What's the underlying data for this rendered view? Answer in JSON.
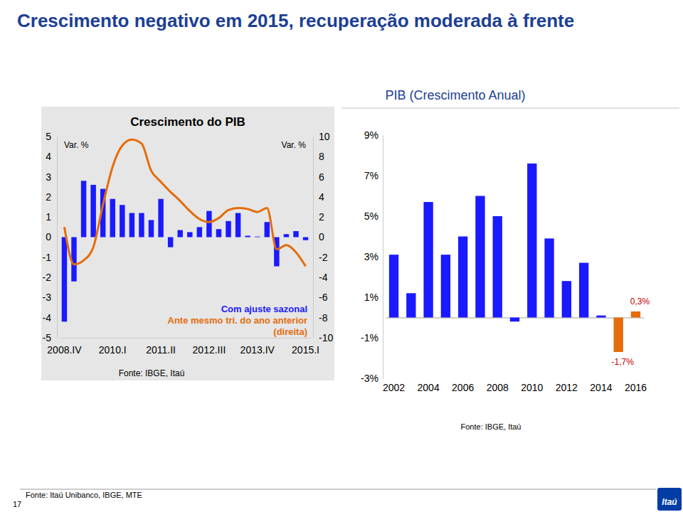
{
  "slide_title": "Crescimento negativo em 2015, recuperação moderada à frente",
  "chart_data": [
    {
      "type": "bar",
      "title": "Crescimento do PIB",
      "categories": [
        "2008.IV",
        null,
        null,
        null,
        null,
        "2010.I",
        null,
        null,
        null,
        null,
        "2011.II",
        null,
        null,
        null,
        null,
        "2012.III",
        null,
        null,
        null,
        null,
        "2013.IV",
        null,
        null,
        null,
        null,
        "2015.I"
      ],
      "series": [
        {
          "name": "Com ajuste sazonal",
          "type": "bar",
          "color": "#1a1aff",
          "values": [
            -4.2,
            -2.2,
            2.8,
            2.6,
            2.4,
            1.9,
            1.6,
            1.2,
            1.2,
            0.85,
            1.9,
            -0.5,
            0.35,
            0.25,
            0.5,
            1.3,
            0.4,
            0.8,
            1.2,
            0.07,
            0.03,
            0.75,
            -1.45,
            0.15,
            0.3,
            -0.15
          ]
        },
        {
          "name": "Ante mesmo tri. do ano anterior (direita)",
          "type": "line",
          "color": "#e46c0a",
          "axis": "y2",
          "values": [
            1.0,
            -2.7,
            -2.3,
            -1.0,
            3.2,
            7.0,
            9.1,
            9.7,
            9.3,
            6.6,
            5.5,
            4.5,
            3.6,
            2.6,
            1.8,
            1.5,
            1.9,
            2.7,
            2.9,
            2.8,
            2.5,
            2.9,
            -1.2,
            -0.8,
            -1.5,
            -2.9
          ]
        }
      ],
      "ylim": [
        -5,
        5
      ],
      "yticks": [
        -5,
        -4,
        -3,
        -2,
        -1,
        0,
        1,
        2,
        3,
        4,
        5
      ],
      "y2lim": [
        -10,
        10
      ],
      "y2ticks": [
        -10,
        -8,
        -6,
        -4,
        -2,
        0,
        2,
        4,
        6,
        8,
        10
      ],
      "y_label": "Var. %",
      "y2_label": "Var. %",
      "legend": "lower right",
      "source": "Fonte: IBGE, Itaú"
    },
    {
      "type": "bar",
      "title": "PIB (Crescimento Anual)",
      "categories": [
        "2002",
        null,
        "2004",
        null,
        "2006",
        null,
        "2008",
        null,
        "2010",
        null,
        "2012",
        null,
        "2014",
        null,
        "2016"
      ],
      "values": [
        3.1,
        1.2,
        5.7,
        3.1,
        4.0,
        6.0,
        5.0,
        -0.2,
        7.6,
        3.9,
        1.8,
        2.7,
        0.1,
        -1.7,
        0.3
      ],
      "colors": [
        "#1a1aff",
        "#1a1aff",
        "#1a1aff",
        "#1a1aff",
        "#1a1aff",
        "#1a1aff",
        "#1a1aff",
        "#1a1aff",
        "#1a1aff",
        "#1a1aff",
        "#1a1aff",
        "#1a1aff",
        "#1a1aff",
        "#e46c0a",
        "#e46c0a"
      ],
      "data_labels": true,
      "value_labels": [
        null,
        null,
        null,
        null,
        null,
        null,
        null,
        null,
        null,
        null,
        null,
        null,
        null,
        "-1,7%",
        "0,3%"
      ],
      "ylim": [
        -3,
        9
      ],
      "yticks": [
        {
          "value": -3,
          "label": "-3%"
        },
        {
          "value": -1,
          "label": "-1%"
        },
        {
          "value": 1,
          "label": "1%"
        },
        {
          "value": 3,
          "label": "3%"
        },
        {
          "value": 5,
          "label": "5%"
        },
        {
          "value": 7,
          "label": "7%"
        },
        {
          "value": 9,
          "label": "9%"
        }
      ],
      "source": "Fonte: IBGE, Itaú"
    }
  ],
  "footer_source": "Fonte: Itaú Unibanco, IBGE, MTE",
  "page_number": 17,
  "logo": "Itaú"
}
